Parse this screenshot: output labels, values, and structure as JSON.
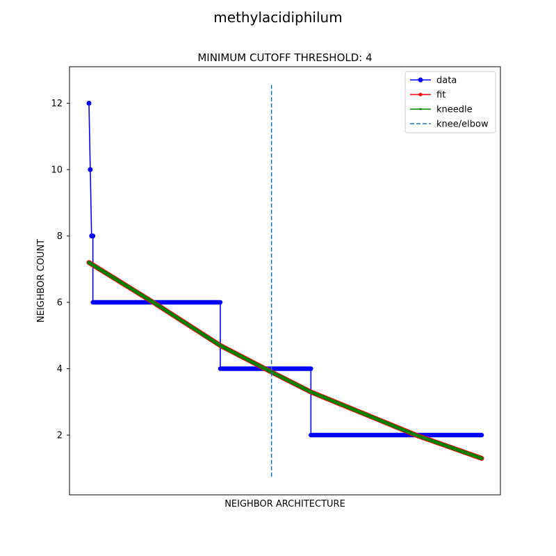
{
  "figure": {
    "suptitle": "methylacidiphilum"
  },
  "chart_data": {
    "type": "line",
    "title": "MINIMUM CUTOFF THRESHOLD: 4",
    "xlabel": "NEIGHBOR ARCHITECTURE",
    "ylabel": "NEIGHBOR COUNT",
    "x_ticks_shown": false,
    "x": [
      1,
      2,
      3,
      4,
      101,
      102,
      170,
      171,
      300
    ],
    "ylim": [
      0.2,
      13.1
    ],
    "yticks": [
      2,
      4,
      6,
      8,
      10,
      12
    ],
    "ytick_labels": [
      "2",
      "4",
      "6",
      "8",
      "10",
      "12"
    ],
    "grid": false,
    "legend_position": "top-right",
    "series": [
      {
        "name": "data",
        "color": "#0000ff",
        "style": "solid-line-with-circle-markers",
        "points": [
          [
            1,
            12
          ],
          [
            2,
            10
          ],
          [
            3,
            8
          ],
          [
            4,
            8
          ],
          [
            4,
            6
          ],
          [
            101,
            6
          ],
          [
            101,
            4
          ],
          [
            170,
            4
          ],
          [
            170,
            2
          ],
          [
            300,
            2
          ]
        ]
      },
      {
        "name": "fit",
        "color": "#ff0000",
        "style": "solid-line-with-point-markers",
        "points": [
          [
            1,
            7.2
          ],
          [
            50,
            6.0
          ],
          [
            101,
            4.7
          ],
          [
            140,
            3.9
          ],
          [
            170,
            3.3
          ],
          [
            250,
            2.0
          ],
          [
            300,
            1.3
          ]
        ]
      },
      {
        "name": "kneedle",
        "color": "#008000",
        "style": "solid-line-with-small-markers",
        "points": [
          [
            1,
            7.2
          ],
          [
            50,
            6.0
          ],
          [
            101,
            4.7
          ],
          [
            140,
            3.9
          ],
          [
            170,
            3.3
          ],
          [
            250,
            2.0
          ],
          [
            300,
            1.3
          ]
        ]
      }
    ],
    "knee": {
      "name": "knee/elbow",
      "color": "#1f77b4",
      "style": "dashed-vertical",
      "x": 140,
      "y_from": 0.75,
      "y_to": 12.55
    }
  }
}
